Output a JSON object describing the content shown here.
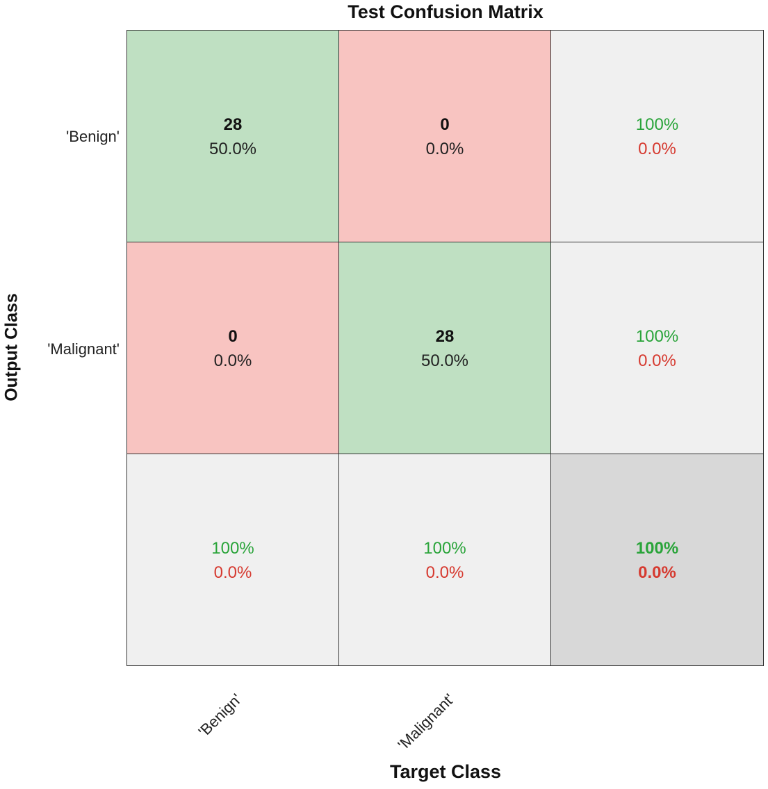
{
  "chart_data": {
    "type": "heatmap",
    "title": "Test Confusion Matrix",
    "xlabel": "Target Class",
    "ylabel": "Output Class",
    "classes": [
      "'Benign'",
      "'Malignant'"
    ],
    "matrix": [
      [
        28,
        0
      ],
      [
        0,
        28
      ]
    ],
    "cell_percentages": [
      [
        "50.0%",
        "0.0%"
      ],
      [
        "0.0%",
        "50.0%"
      ]
    ],
    "row_summary": [
      {
        "correct": "100%",
        "incorrect": "0.0%"
      },
      {
        "correct": "100%",
        "incorrect": "0.0%"
      }
    ],
    "column_summary": [
      {
        "correct": "100%",
        "incorrect": "0.0%"
      },
      {
        "correct": "100%",
        "incorrect": "0.0%"
      }
    ],
    "overall": {
      "correct": "100%",
      "incorrect": "0.0%"
    }
  },
  "colors": {
    "diagonal": "#bfe0c2",
    "off_diagonal": "#f8c4c1",
    "summary": "#f0f0f0",
    "overall": "#d8d8d8",
    "good_text": "#2aa43a",
    "bad_text": "#d63a30"
  }
}
